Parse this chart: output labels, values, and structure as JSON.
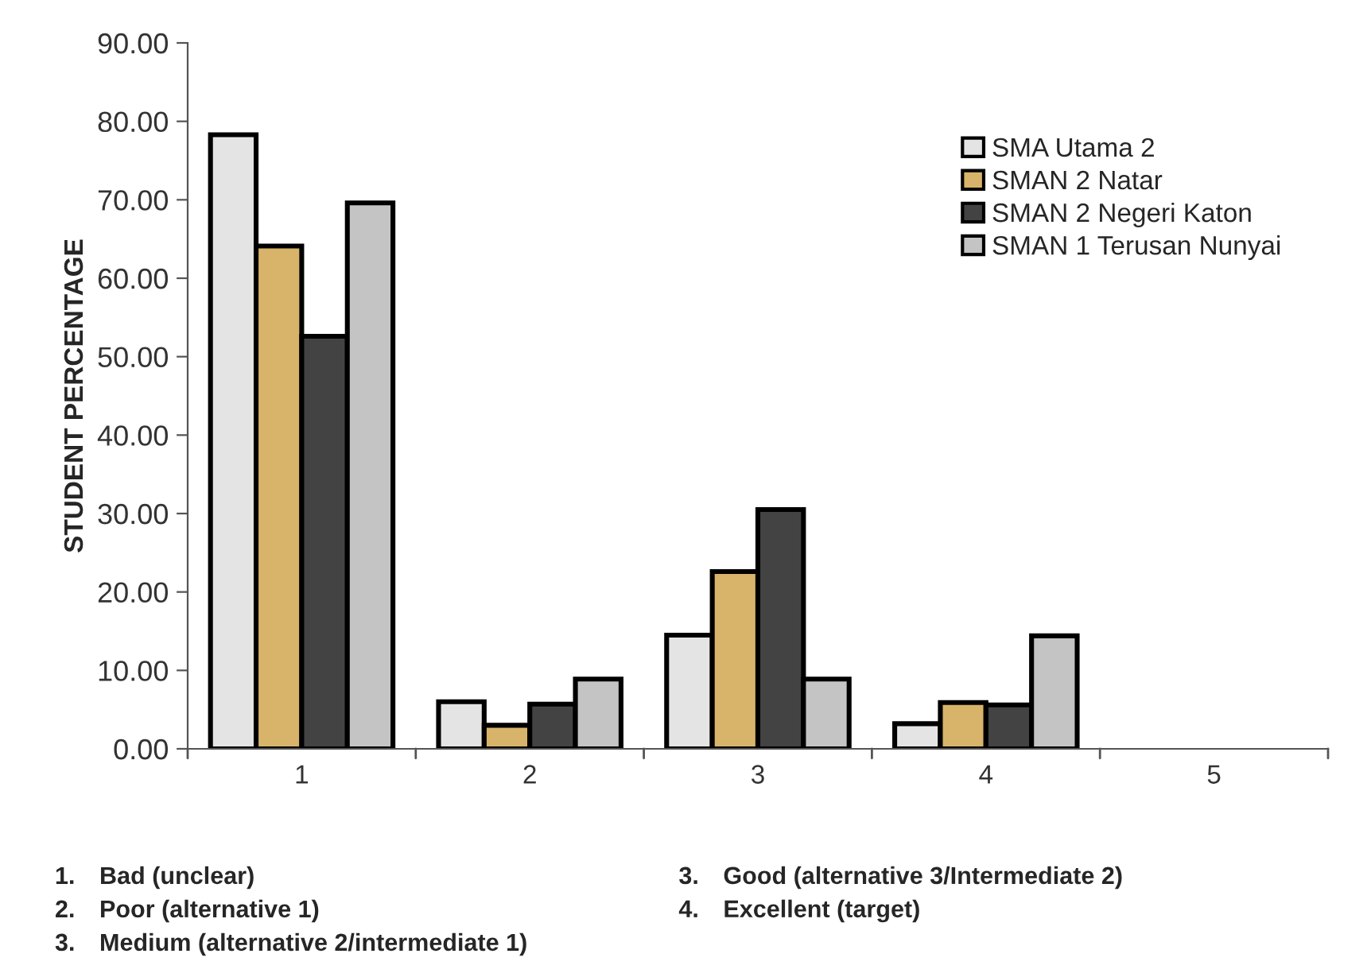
{
  "chart_data": {
    "type": "bar",
    "ylabel": "STUDENT PERCENTAGE",
    "categories": [
      "1",
      "2",
      "3",
      "4",
      "5"
    ],
    "series": [
      {
        "name": "SMA Utama 2",
        "color": "#e4e4e4",
        "values": [
          78.3,
          6.0,
          14.5,
          3.2,
          null
        ]
      },
      {
        "name": "SMAN 2 Natar",
        "color": "#d8b36a",
        "values": [
          64.1,
          3.0,
          22.6,
          5.9,
          null
        ]
      },
      {
        "name": "SMAN 2 Negeri Katon",
        "color": "#434343",
        "values": [
          52.6,
          5.7,
          30.5,
          5.6,
          null
        ]
      },
      {
        "name": "SMAN 1 Terusan Nunyai",
        "color": "#c4c4c4",
        "values": [
          69.6,
          8.9,
          8.9,
          14.4,
          null
        ]
      }
    ],
    "ylim": [
      0,
      90
    ],
    "yticks": [
      {
        "value": 0,
        "label": "0.00"
      },
      {
        "value": 10,
        "label": "10.00"
      },
      {
        "value": 20,
        "label": "20.00"
      },
      {
        "value": 30,
        "label": "30.00"
      },
      {
        "value": 40,
        "label": "40.00"
      },
      {
        "value": 50,
        "label": "50.00"
      },
      {
        "value": 60,
        "label": "60.00"
      },
      {
        "value": 70,
        "label": "70.00"
      },
      {
        "value": 80,
        "label": "80.00"
      },
      {
        "value": 90,
        "label": "90.00"
      }
    ],
    "grid": false,
    "legend": "top right",
    "annotations": [
      "1. Bad (unclear)",
      "2. Poor (alternative 1)",
      "3. Medium (alternative 2/intermediate 1)",
      "3. Good (alternative 3/Intermediate 2)",
      "4. Excellent (target)"
    ]
  }
}
